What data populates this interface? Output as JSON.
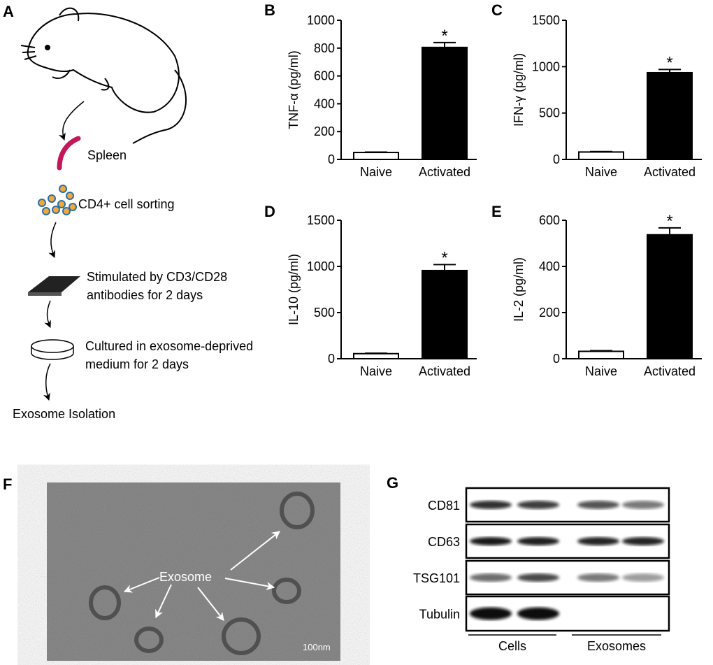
{
  "chart_data": [
    {
      "type": "bar",
      "panel_label": "B",
      "y_label": "TNF-α (pg/ml)",
      "categories": [
        "Naive",
        "Activated"
      ],
      "values": [
        50,
        805
      ],
      "errors": [
        3,
        35
      ],
      "colors": [
        "#ffffff",
        "#000000"
      ],
      "value_annotations": [
        null,
        "*"
      ],
      "ylim": [
        0,
        1000
      ],
      "yticks": [
        0,
        200,
        400,
        600,
        800,
        1000
      ]
    },
    {
      "type": "bar",
      "panel_label": "C",
      "y_label": "IFN-γ (pg/ml)",
      "categories": [
        "Naive",
        "Activated"
      ],
      "values": [
        80,
        935
      ],
      "errors": [
        5,
        35
      ],
      "colors": [
        "#ffffff",
        "#000000"
      ],
      "value_annotations": [
        null,
        "*"
      ],
      "ylim": [
        0,
        1500
      ],
      "yticks": [
        0,
        500,
        1000,
        1500
      ]
    },
    {
      "type": "bar",
      "panel_label": "D",
      "y_label": "IL-10 (pg/ml)",
      "categories": [
        "Naive",
        "Activated"
      ],
      "values": [
        55,
        955
      ],
      "errors": [
        5,
        65
      ],
      "colors": [
        "#ffffff",
        "#000000"
      ],
      "value_annotations": [
        null,
        "*"
      ],
      "ylim": [
        0,
        1500
      ],
      "yticks": [
        0,
        500,
        1000,
        1500
      ]
    },
    {
      "type": "bar",
      "panel_label": "E",
      "y_label": "IL-2 (pg/ml)",
      "categories": [
        "Naive",
        "Activated"
      ],
      "values": [
        32,
        537
      ],
      "errors": [
        3,
        30
      ],
      "colors": [
        "#ffffff",
        "#000000"
      ],
      "value_annotations": [
        null,
        "*"
      ],
      "ylim": [
        0,
        600
      ],
      "yticks": [
        0,
        200,
        400,
        600
      ]
    }
  ],
  "panel_a": {
    "label": "A",
    "spleen": "Spleen",
    "sorting": "CD4+ cell sorting",
    "stimulation": [
      "Stimulated by CD3/CD28",
      "antibodies for 2 days"
    ],
    "culture": [
      "Cultured in exosome-deprived",
      "medium for 2 days"
    ],
    "isolation": "Exosome Isolation"
  },
  "panel_f": {
    "label": "F",
    "annotation": "Exosome",
    "scale_bar": "100nm"
  },
  "panel_g": {
    "label": "G",
    "rows": [
      "CD81",
      "CD63",
      "TSG101",
      "Tubulin"
    ],
    "groups": [
      "Cells",
      "Exosomes"
    ]
  }
}
